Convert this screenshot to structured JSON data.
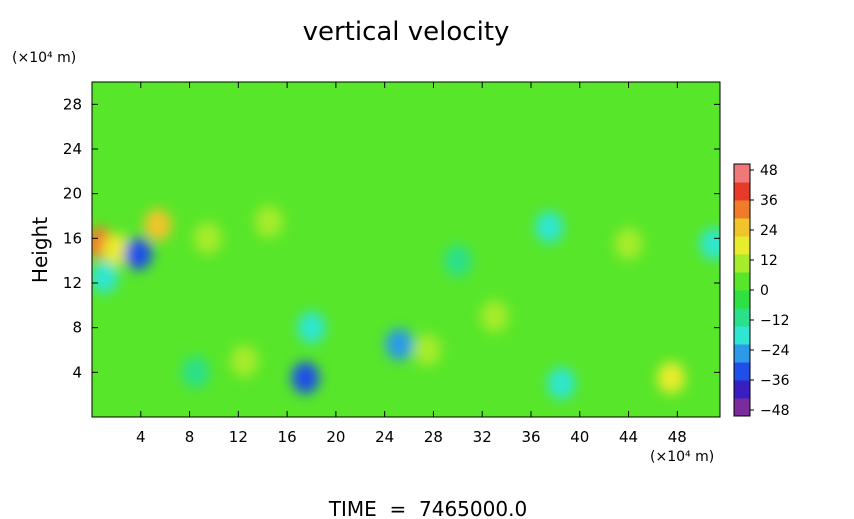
{
  "chart_data": {
    "type": "heatmap",
    "title": "vertical velocity",
    "xlabel": "",
    "ylabel": "Height",
    "x_unit": "(×10⁴ m)",
    "y_unit": "(×10⁴ m)",
    "footer": "TIME  =  7465000.0",
    "xlim": [
      0,
      51.5
    ],
    "ylim": [
      0,
      30
    ],
    "xticks": [
      "4",
      "8",
      "12",
      "16",
      "20",
      "24",
      "28",
      "32",
      "36",
      "40",
      "44",
      "48"
    ],
    "yticks": [
      "4",
      "8",
      "12",
      "16",
      "20",
      "24",
      "28"
    ],
    "colorbar": {
      "ticks": [
        "48",
        "36",
        "24",
        "12",
        "0",
        "-12",
        "-24",
        "-36",
        "-48"
      ],
      "range": [
        -48,
        48
      ],
      "colors": [
        "#7a2b9c",
        "#3a1fc0",
        "#1f4fe8",
        "#2c9ae8",
        "#2ee6d2",
        "#2be08a",
        "#2ee042",
        "#58e62a",
        "#a6ec2a",
        "#e8ec2a",
        "#f0c42a",
        "#f07c2a",
        "#e83a2a",
        "#f07878"
      ]
    },
    "background_value": 4,
    "features": [
      {
        "x": 0.6,
        "y": 15.6,
        "value": 30
      },
      {
        "x": 2.0,
        "y": 15.0,
        "value": 20
      },
      {
        "x": 3.8,
        "y": 14.6,
        "value": -33
      },
      {
        "x": 5.4,
        "y": 17.2,
        "value": 22
      },
      {
        "x": 9.5,
        "y": 16.0,
        "value": 12
      },
      {
        "x": 14.5,
        "y": 17.5,
        "value": 12
      },
      {
        "x": 17.5,
        "y": 3.5,
        "value": -30
      },
      {
        "x": 18.0,
        "y": 8.0,
        "value": -14
      },
      {
        "x": 25.2,
        "y": 6.5,
        "value": -22
      },
      {
        "x": 27.5,
        "y": 6.0,
        "value": 10
      },
      {
        "x": 33.0,
        "y": 9.0,
        "value": 10
      },
      {
        "x": 37.5,
        "y": 17.0,
        "value": -18
      },
      {
        "x": 44.0,
        "y": 15.5,
        "value": 12
      },
      {
        "x": 47.5,
        "y": 3.5,
        "value": 14
      },
      {
        "x": 51.0,
        "y": 15.5,
        "value": -16
      },
      {
        "x": 1.0,
        "y": 12.5,
        "value": -14
      },
      {
        "x": 38.5,
        "y": 3.0,
        "value": -14
      },
      {
        "x": 8.5,
        "y": 4.0,
        "value": -10
      },
      {
        "x": 12.5,
        "y": 5.0,
        "value": 8
      },
      {
        "x": 30.0,
        "y": 14.0,
        "value": -8
      },
      {
        "x": 21.0,
        "y": 18.5,
        "value": 6
      }
    ]
  }
}
